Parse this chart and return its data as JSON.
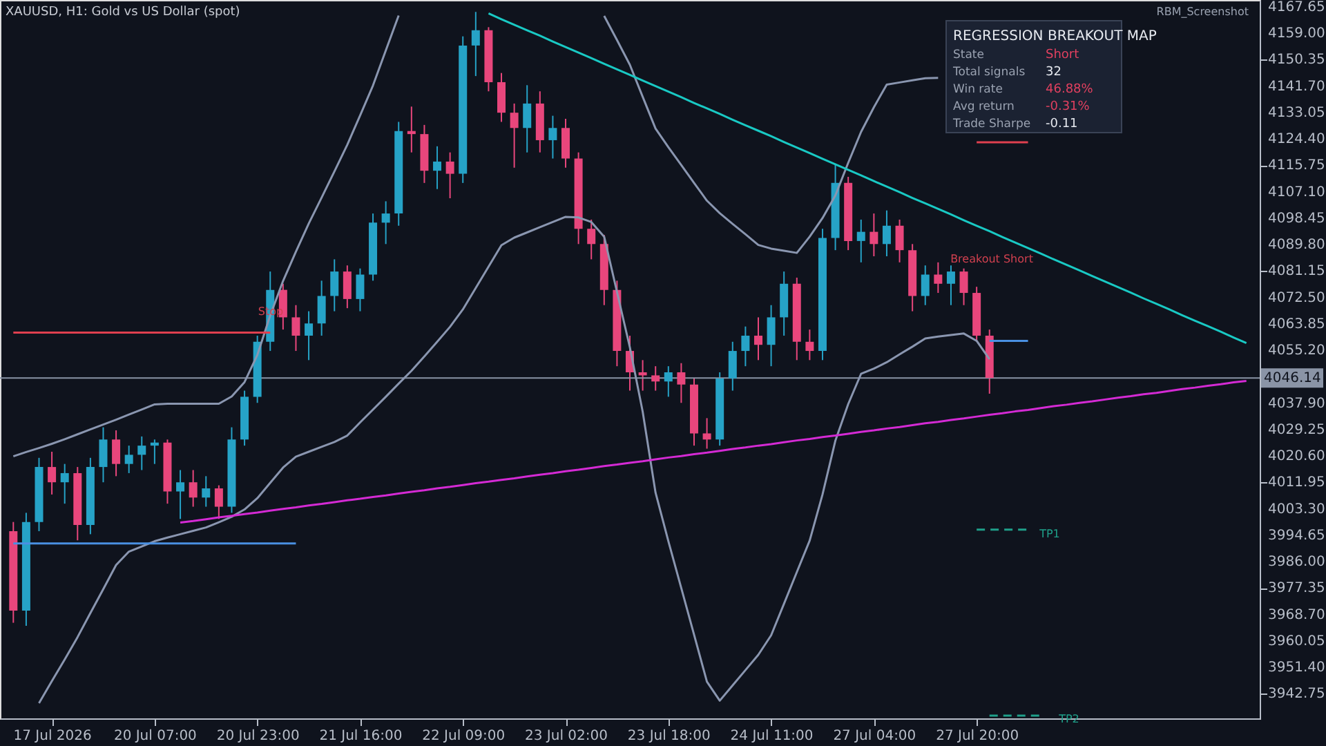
{
  "chart_data": {
    "type": "candlestick",
    "title": "XAUUSD, H1:  Gold vs US Dollar (spot)",
    "categories": [
      null,
      null,
      null,
      "17 Jul 2026",
      null,
      null,
      null,
      null,
      null,
      null,
      null,
      "20 Jul 07:00",
      null,
      null,
      null,
      null,
      null,
      null,
      null,
      "20 Jul 23:00",
      null,
      null,
      null,
      null,
      null,
      null,
      null,
      "21 Jul 16:00",
      null,
      null,
      null,
      null,
      null,
      null,
      null,
      "22 Jul 09:00",
      null,
      null,
      null,
      null,
      null,
      null,
      null,
      "23 Jul 02:00",
      null,
      null,
      null,
      null,
      null,
      null,
      null,
      "23 Jul 18:00",
      null,
      null,
      null,
      null,
      null,
      null,
      null,
      "24 Jul 11:00",
      null,
      null,
      null,
      null,
      null,
      null,
      null,
      "27 Jul 04:00",
      null,
      null,
      null,
      null,
      null,
      null,
      null,
      "27 Jul 20:00",
      null,
      null,
      null,
      null,
      null,
      null,
      null,
      null,
      null,
      null,
      null,
      null,
      null,
      null,
      null,
      null,
      null,
      null,
      null,
      null,
      null
    ],
    "ohlc": [
      [
        3996,
        3999,
        3966,
        3970
      ],
      [
        3970,
        4002,
        3965,
        3999
      ],
      [
        3999,
        4020,
        3996,
        4017
      ],
      [
        4017,
        4022,
        4008,
        4012
      ],
      [
        4012,
        4018,
        4005,
        4015
      ],
      [
        4015,
        4017,
        3993,
        3998
      ],
      [
        3998,
        4020,
        3995,
        4017
      ],
      [
        4017,
        4030,
        4012,
        4026
      ],
      [
        4026,
        4029,
        4014,
        4018
      ],
      [
        4018,
        4024,
        4015,
        4021
      ],
      [
        4021,
        4027,
        4016,
        4024
      ],
      [
        4024,
        4026,
        4018,
        4025
      ],
      [
        4025,
        4026,
        4005,
        4009
      ],
      [
        4009,
        4016,
        4000,
        4012
      ],
      [
        4012,
        4016,
        4004,
        4007
      ],
      [
        4007,
        4014,
        4004,
        4010
      ],
      [
        4010,
        4011,
        4000,
        4004
      ],
      [
        4004,
        4030,
        4002,
        4026
      ],
      [
        4026,
        4042,
        4024,
        4040
      ],
      [
        4040,
        4060,
        4038,
        4058
      ],
      [
        4058,
        4081,
        4055,
        4075
      ],
      [
        4075,
        4077,
        4062,
        4066
      ],
      [
        4066,
        4070,
        4055,
        4060
      ],
      [
        4060,
        4068,
        4052,
        4064
      ],
      [
        4064,
        4078,
        4060,
        4073
      ],
      [
        4073,
        4085,
        4068,
        4081
      ],
      [
        4081,
        4083,
        4069,
        4072
      ],
      [
        4072,
        4082,
        4068,
        4080
      ],
      [
        4080,
        4100,
        4078,
        4097
      ],
      [
        4097,
        4104,
        4090,
        4100
      ],
      [
        4100,
        4130,
        4096,
        4127
      ],
      [
        4127,
        4135,
        4120,
        4126
      ],
      [
        4126,
        4129,
        4110,
        4114
      ],
      [
        4114,
        4122,
        4108,
        4117
      ],
      [
        4117,
        4120,
        4105,
        4113
      ],
      [
        4113,
        4158,
        4110,
        4155
      ],
      [
        4155,
        4166,
        4145,
        4160
      ],
      [
        4160,
        4161,
        4140,
        4143
      ],
      [
        4143,
        4146,
        4130,
        4133
      ],
      [
        4133,
        4136,
        4115,
        4128
      ],
      [
        4128,
        4142,
        4120,
        4136
      ],
      [
        4136,
        4140,
        4120,
        4124
      ],
      [
        4124,
        4132,
        4118,
        4128
      ],
      [
        4128,
        4131,
        4115,
        4118
      ],
      [
        4118,
        4120,
        4090,
        4095
      ],
      [
        4095,
        4098,
        4085,
        4090
      ],
      [
        4090,
        4093,
        4070,
        4075
      ],
      [
        4075,
        4078,
        4050,
        4055
      ],
      [
        4055,
        4060,
        4042,
        4048
      ],
      [
        4048,
        4052,
        4042,
        4047
      ],
      [
        4047,
        4050,
        4042,
        4045
      ],
      [
        4045,
        4050,
        4040,
        4048
      ],
      [
        4048,
        4051,
        4038,
        4044
      ],
      [
        4044,
        4046,
        4024,
        4028
      ],
      [
        4028,
        4033,
        4023,
        4026
      ],
      [
        4026,
        4048,
        4024,
        4046
      ],
      [
        4046,
        4058,
        4042,
        4055
      ],
      [
        4055,
        4063,
        4050,
        4060
      ],
      [
        4060,
        4066,
        4052,
        4057
      ],
      [
        4057,
        4070,
        4050,
        4066
      ],
      [
        4066,
        4081,
        4060,
        4077
      ],
      [
        4077,
        4079,
        4052,
        4058
      ],
      [
        4058,
        4062,
        4052,
        4055
      ],
      [
        4055,
        4095,
        4052,
        4092
      ],
      [
        4092,
        4116,
        4088,
        4110
      ],
      [
        4110,
        4112,
        4088,
        4091
      ],
      [
        4091,
        4098,
        4084,
        4094
      ],
      [
        4094,
        4100,
        4086,
        4090
      ],
      [
        4090,
        4101,
        4086,
        4096
      ],
      [
        4096,
        4098,
        4084,
        4088
      ],
      [
        4088,
        4090,
        4068,
        4073
      ],
      [
        4073,
        4083,
        4070,
        4080
      ],
      [
        4080,
        4084,
        4074,
        4077
      ],
      [
        4077,
        4083,
        4070,
        4081
      ],
      [
        4081,
        4082,
        4070,
        4074
      ],
      [
        4074,
        4076,
        4058,
        4060
      ],
      [
        4060,
        4062,
        4041,
        4046.14
      ],
      null,
      null,
      null,
      null,
      null,
      null,
      null,
      null,
      null,
      null,
      null,
      null,
      null,
      null,
      null,
      null,
      null,
      null,
      null,
      null
    ],
    "colors": [
      "#e8467c",
      "#26a3c7",
      "#26a3c7",
      "#e8467c",
      "#26a3c7",
      "#e8467c",
      "#26a3c7",
      "#26a3c7",
      "#e8467c",
      "#26a3c7",
      "#26a3c7",
      "#26a3c7",
      "#e8467c",
      "#26a3c7",
      "#e8467c",
      "#26a3c7",
      "#e8467c",
      "#26a3c7",
      "#26a3c7",
      "#26a3c7",
      "#26a3c7",
      "#e8467c",
      "#e8467c",
      "#26a3c7",
      "#26a3c7",
      "#26a3c7",
      "#e8467c",
      "#26a3c7",
      "#26a3c7",
      "#26a3c7",
      "#26a3c7",
      "#e8467c",
      "#e8467c",
      "#26a3c7",
      "#e8467c",
      "#26a3c7",
      "#26a3c7",
      "#e8467c",
      "#e8467c",
      "#e8467c",
      "#26a3c7",
      "#e8467c",
      "#26a3c7",
      "#e8467c",
      "#e8467c",
      "#e8467c",
      "#e8467c",
      "#e8467c",
      "#e8467c",
      "#e8467c",
      "#e8467c",
      "#26a3c7",
      "#e8467c",
      "#e8467c",
      "#e8467c",
      "#26a3c7",
      "#26a3c7",
      "#26a3c7",
      "#e8467c",
      "#26a3c7",
      "#26a3c7",
      "#e8467c",
      "#e8467c",
      "#26a3c7",
      "#26a3c7",
      "#e8467c",
      "#26a3c7",
      "#e8467c",
      "#26a3c7",
      "#e8467c",
      "#e8467c",
      "#26a3c7",
      "#e8467c",
      "#26a3c7",
      "#e8467c",
      "#e8467c",
      "#e8467c",
      null,
      null,
      null,
      null,
      null,
      null,
      null,
      null,
      null,
      null,
      null,
      null,
      null,
      null,
      null,
      null,
      null,
      null,
      null,
      null
    ],
    "series": [
      {
        "type": "line",
        "color": "#8a96b0",
        "values": [
          4020.5,
          4021.9,
          4023.2,
          4024.6,
          4026.1,
          4027.7,
          4029.3,
          4030.9,
          4032.5,
          4034.2,
          4035.8,
          4037.5,
          4037.7,
          4037.7,
          4037.7,
          4037.7,
          4037.7,
          4040.1,
          4044.8,
          4053.7,
          4066.6,
          4077.9,
          4087.5,
          4096.7,
          4105.2,
          4113.8,
          4122.5,
          4132.1,
          4141.9,
          4153.4,
          4164.8,
          null,
          null,
          null,
          null,
          null,
          null,
          null,
          null,
          null,
          null,
          null,
          null,
          null,
          null,
          null,
          4164.7,
          4156.8,
          4148.7,
          4138.2,
          4127.8,
          4121.7,
          4115.9,
          4110.0,
          4104.2,
          4100.1,
          4096.6,
          4093.2,
          4089.7,
          4088.5,
          4087.8,
          4087.1,
          4092.4,
          4098.5,
          4105.9,
          4116.6,
          4126.7,
          4134.8,
          4142.2,
          4142.9,
          4143.6,
          4144.3,
          4144.4,
          null,
          null,
          null,
          null,
          null,
          null,
          null,
          null,
          null,
          null,
          null,
          null,
          null,
          null,
          null,
          null,
          null,
          null,
          null,
          null,
          null,
          null,
          null,
          null
        ]
      },
      {
        "type": "line",
        "color": "#8a96b0",
        "values": [
          null,
          null,
          3939.7,
          3946.9,
          3954.0,
          3961.3,
          3969.2,
          3977.0,
          3984.9,
          3989.3,
          3991.0,
          3992.7,
          3993.9,
          3995.0,
          3996.1,
          3997.2,
          3998.9,
          4000.7,
          4003.1,
          4006.8,
          4011.8,
          4016.8,
          4020.4,
          4022.0,
          4023.6,
          4025.2,
          4027.3,
          4031.6,
          4035.8,
          4040.0,
          4044.3,
          4048.5,
          4053.2,
          4058.0,
          4062.9,
          4068.6,
          4075.6,
          4082.6,
          4089.6,
          4092.1,
          4093.8,
          4095.5,
          4097.2,
          4098.9,
          4098.7,
          4097.2,
          4092.4,
          4074.3,
          4056.2,
          4035.1,
          4008.6,
          3992.7,
          3977.4,
          3962.1,
          3946.7,
          3940.5,
          3945.5,
          3950.5,
          3955.5,
          3961.9,
          3972.2,
          3982.6,
          3992.9,
          4008.0,
          4025.6,
          4037.6,
          4047.5,
          4049.2,
          4051.3,
          4053.9,
          4056.4,
          4059.1,
          4059.7,
          4060.2,
          4060.7,
          4058.3,
          4052.3,
          null,
          null,
          null,
          null,
          null,
          null,
          null,
          null,
          null,
          null,
          null,
          null,
          null,
          null,
          null,
          null,
          null,
          null,
          null,
          null
        ]
      },
      {
        "type": "line",
        "color": "#19c9c4",
        "values": [
          null,
          null,
          null,
          null,
          null,
          null,
          null,
          null,
          null,
          null,
          null,
          null,
          null,
          null,
          null,
          null,
          null,
          null,
          null,
          null,
          null,
          null,
          null,
          null,
          null,
          null,
          null,
          null,
          null,
          null,
          null,
          null,
          null,
          null,
          null,
          null,
          null,
          4165.5,
          4163.6,
          4161.8,
          4160.0,
          4158.2,
          4156.3,
          4154.5,
          4152.7,
          4150.9,
          4149.0,
          4147.2,
          4145.4,
          4143.5,
          4141.7,
          4139.9,
          4138.1,
          4136.2,
          4134.4,
          4132.6,
          4130.7,
          4128.9,
          4127.1,
          4125.3,
          4123.4,
          4121.6,
          4119.8,
          4117.9,
          4116.1,
          4114.3,
          4112.5,
          4110.6,
          4108.8,
          4107.0,
          4105.1,
          4103.3,
          4101.5,
          4099.7,
          4097.8,
          4096.0,
          4094.2,
          4092.3,
          4090.5,
          4088.7,
          4086.9,
          4085.0,
          4083.2,
          4081.4,
          4079.5,
          4077.7,
          4075.9,
          4074.1,
          4072.2,
          4070.4,
          4068.6,
          4066.7,
          4064.9,
          4063.1,
          4061.3,
          4059.4,
          4057.6
        ]
      },
      {
        "type": "line",
        "color": "#d42ad4",
        "values": [
          null,
          null,
          null,
          null,
          null,
          null,
          null,
          null,
          null,
          null,
          null,
          null,
          null,
          3998.8,
          3999.3,
          3999.9,
          4000.5,
          4001.0,
          4001.6,
          4002.1,
          4002.7,
          4003.3,
          4003.8,
          4004.4,
          4004.9,
          4005.5,
          4006.1,
          4006.6,
          4007.2,
          4007.7,
          4008.3,
          4008.9,
          4009.4,
          4010.0,
          4010.5,
          4011.1,
          4011.7,
          4012.2,
          4012.8,
          4013.3,
          4013.9,
          4014.5,
          4015.0,
          4015.6,
          4016.1,
          4016.7,
          4017.3,
          4017.8,
          4018.4,
          4018.9,
          4019.5,
          4020.1,
          4020.6,
          4021.2,
          4021.7,
          4022.3,
          4022.9,
          4023.4,
          4024.0,
          4024.5,
          4025.1,
          4025.7,
          4026.2,
          4026.8,
          4027.3,
          4027.9,
          4028.5,
          4029.0,
          4029.6,
          4030.1,
          4030.7,
          4031.3,
          4031.8,
          4032.4,
          4032.9,
          4033.5,
          4034.1,
          4034.6,
          4035.2,
          4035.7,
          4036.3,
          4036.9,
          4037.4,
          4038.0,
          4038.5,
          4039.1,
          4039.7,
          4040.2,
          4040.8,
          4041.3,
          4041.9,
          4042.5,
          4043.0,
          4043.6,
          4044.1,
          4044.7,
          4045.2
        ]
      },
      {
        "type": "line",
        "color": "#e0404f",
        "values": [
          4061.0,
          4061.0,
          4061.0,
          4061.0,
          4061.0,
          4061.0,
          4061.0,
          4061.0,
          4061.0,
          4061.0,
          4061.0,
          4061.0,
          4061.0,
          4061.0,
          4061.0,
          4061.0,
          4061.0,
          4061.0,
          4061.0,
          4061.0,
          4061.0,
          null,
          null,
          null,
          null,
          null,
          null,
          null,
          null,
          null,
          null,
          null,
          null,
          null,
          null,
          null,
          null,
          null,
          null,
          null,
          null,
          null,
          null,
          null,
          null,
          null,
          null,
          null,
          null,
          null,
          null,
          null,
          null,
          null,
          null,
          null,
          null,
          null,
          null,
          null,
          null,
          null,
          null,
          null,
          null,
          null,
          null,
          null,
          null,
          null,
          null,
          null,
          null,
          null,
          null,
          null,
          null,
          null,
          null,
          null,
          null,
          null,
          null,
          null,
          null,
          null,
          null,
          null,
          null,
          null,
          null,
          null,
          null,
          null,
          null,
          null,
          null
        ]
      },
      {
        "type": "line",
        "color": "#4a90e2",
        "values": [
          3992.0,
          3992.0,
          3992.0,
          3992.0,
          3992.0,
          3992.0,
          3992.0,
          3992.0,
          3992.0,
          3992.0,
          3992.0,
          3992.0,
          3992.0,
          3992.0,
          3992.0,
          3992.0,
          3992.0,
          3992.0,
          3992.0,
          3992.0,
          3992.0,
          3992.0,
          3992.0,
          null,
          null,
          null,
          null,
          null,
          null,
          null,
          null,
          null,
          null,
          null,
          null,
          null,
          null,
          null,
          null,
          null,
          null,
          null,
          null,
          null,
          null,
          null,
          null,
          null,
          null,
          null,
          null,
          null,
          null,
          null,
          null,
          null,
          null,
          null,
          null,
          null,
          null,
          null,
          null,
          null,
          null,
          null,
          null,
          null,
          null,
          null,
          null,
          null,
          null,
          null,
          null,
          null,
          null,
          null,
          null,
          null,
          null,
          null,
          null,
          null,
          null,
          null,
          null,
          null,
          null,
          null,
          null,
          null,
          null,
          null,
          null,
          null,
          null
        ]
      },
      {
        "type": "line",
        "color": "#e0404f",
        "values": [
          null,
          null,
          null,
          null,
          null,
          null,
          null,
          null,
          null,
          null,
          null,
          null,
          null,
          null,
          null,
          null,
          null,
          null,
          null,
          null,
          null,
          null,
          null,
          null,
          null,
          null,
          null,
          null,
          null,
          null,
          null,
          null,
          null,
          null,
          null,
          null,
          null,
          null,
          null,
          null,
          null,
          null,
          null,
          null,
          null,
          null,
          null,
          null,
          null,
          null,
          null,
          null,
          null,
          null,
          null,
          null,
          null,
          null,
          null,
          null,
          null,
          null,
          null,
          null,
          null,
          null,
          null,
          null,
          null,
          null,
          null,
          null,
          null,
          null,
          null,
          4123.3,
          4123.3,
          4123.3,
          4123.3,
          4123.3,
          null,
          null,
          null,
          null,
          null,
          null,
          null,
          null,
          null,
          null,
          null,
          null,
          null,
          null,
          null,
          null,
          null
        ]
      },
      {
        "type": "line",
        "color": "#4a90e2",
        "values": [
          null,
          null,
          null,
          null,
          null,
          null,
          null,
          null,
          null,
          null,
          null,
          null,
          null,
          null,
          null,
          null,
          null,
          null,
          null,
          null,
          null,
          null,
          null,
          null,
          null,
          null,
          null,
          null,
          null,
          null,
          null,
          null,
          null,
          null,
          null,
          null,
          null,
          null,
          null,
          null,
          null,
          null,
          null,
          null,
          null,
          null,
          null,
          null,
          null,
          null,
          null,
          null,
          null,
          null,
          null,
          null,
          null,
          null,
          null,
          null,
          null,
          null,
          null,
          null,
          null,
          null,
          null,
          null,
          null,
          null,
          null,
          null,
          null,
          null,
          null,
          null,
          4058.3,
          4058.3,
          4058.3,
          4058.3,
          null,
          null,
          null,
          null,
          null,
          null,
          null,
          null,
          null,
          null,
          null,
          null,
          null,
          null,
          null,
          null,
          null
        ]
      },
      {
        "type": "line",
        "color": "#1fa08a",
        "line_style": "dashed",
        "values": [
          null,
          null,
          null,
          null,
          null,
          null,
          null,
          null,
          null,
          null,
          null,
          null,
          null,
          null,
          null,
          null,
          null,
          null,
          null,
          null,
          null,
          null,
          null,
          null,
          null,
          null,
          null,
          null,
          null,
          null,
          null,
          null,
          null,
          null,
          null,
          null,
          null,
          null,
          null,
          null,
          null,
          null,
          null,
          null,
          null,
          null,
          null,
          null,
          null,
          null,
          null,
          null,
          null,
          null,
          null,
          null,
          null,
          null,
          null,
          null,
          null,
          null,
          null,
          null,
          null,
          null,
          null,
          null,
          null,
          null,
          null,
          null,
          null,
          null,
          null,
          3996.5,
          3996.5,
          3996.5,
          3996.5,
          3996.5,
          null,
          null,
          null,
          null,
          null,
          null,
          null,
          null,
          null,
          null,
          null,
          null,
          null,
          null,
          null,
          null,
          null
        ]
      },
      {
        "type": "line",
        "color": "#1fa08a",
        "line_style": "dashed",
        "values": [
          null,
          null,
          null,
          null,
          null,
          null,
          null,
          null,
          null,
          null,
          null,
          null,
          null,
          null,
          null,
          null,
          null,
          null,
          null,
          null,
          null,
          null,
          null,
          null,
          null,
          null,
          null,
          null,
          null,
          null,
          null,
          null,
          null,
          null,
          null,
          null,
          null,
          null,
          null,
          null,
          null,
          null,
          null,
          null,
          null,
          null,
          null,
          null,
          null,
          null,
          null,
          null,
          null,
          null,
          null,
          null,
          null,
          null,
          null,
          null,
          null,
          null,
          null,
          null,
          null,
          null,
          null,
          null,
          null,
          null,
          null,
          null,
          null,
          null,
          null,
          null,
          3935.6,
          3935.6,
          3935.6,
          3935.6,
          3935.6,
          null,
          null,
          null,
          null,
          null,
          null,
          null,
          null,
          null,
          null,
          null,
          null,
          null,
          null,
          null,
          null
        ]
      }
    ],
    "ref_lines": [
      {
        "axis": "y",
        "value": 4046.14,
        "label": "4046.14",
        "color": "#8a94a6"
      }
    ],
    "annotations": [
      "REGRESSION BREAKOUT MAP",
      "State",
      "Short",
      "Total signals",
      "32",
      "Win rate",
      "46.88%",
      "Avg return",
      "-0.31%",
      "Trade Sharpe",
      "-0.11",
      "RBM_Screenshot",
      "Stop",
      "Breakout Short",
      "TP1",
      "TP2"
    ],
    "ylim": [
      3934.7,
      4169.9
    ],
    "yticks": [
      4167.65,
      {
        "value": 4159,
        "label": "4159.00"
      },
      4150.35,
      {
        "value": 4141.7,
        "label": "4141.70"
      },
      4133.05,
      {
        "value": 4124.4,
        "label": "4124.40"
      },
      4115.75,
      {
        "value": 4107.1,
        "label": "4107.10"
      },
      4098.45,
      {
        "value": 4089.8,
        "label": "4089.80"
      },
      4081.15,
      {
        "value": 4072.5,
        "label": "4072.50"
      },
      4063.85,
      {
        "value": 4055.2,
        "label": "4055.20"
      },
      {
        "value": 4046.55,
        "label": null
      },
      {
        "value": 4037.9,
        "label": "4037.90"
      },
      4029.25,
      {
        "value": 4020.6,
        "label": "4020.60"
      },
      4011.95,
      {
        "value": 4003.3,
        "label": "4003.30"
      },
      3994.65,
      {
        "value": 3986,
        "label": "3986.00"
      },
      3977.35,
      {
        "value": 3968.7,
        "label": "3968.70"
      },
      3960.05,
      {
        "value": 3951.4,
        "label": "3951.40"
      },
      3942.75
    ]
  }
}
